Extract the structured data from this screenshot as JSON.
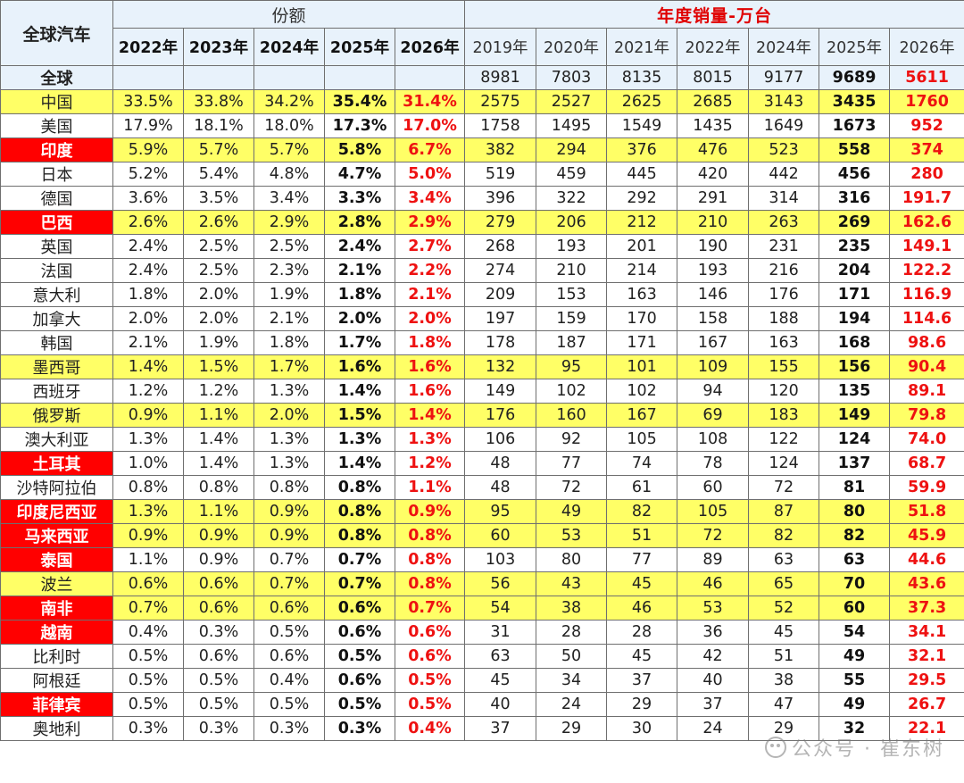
{
  "header": {
    "corner": "全球汽车",
    "share_title": "份额",
    "sales_title": "年度销量-万台",
    "share_years": [
      "2022年",
      "2023年",
      "2024年",
      "2025年",
      "2026年"
    ],
    "sales_years": [
      "2019年",
      "2020年",
      "2021年",
      "2022年",
      "2024年",
      "2025年",
      "2026年"
    ]
  },
  "global": {
    "label": "全球",
    "sales": [
      "8981",
      "7803",
      "8135",
      "8015",
      "9177",
      "9689",
      "5611"
    ]
  },
  "rows": [
    {
      "country": "中国",
      "red": false,
      "hl": true,
      "share": [
        "33.5%",
        "33.8%",
        "34.2%",
        "35.4%",
        "31.4%"
      ],
      "sales": [
        "2575",
        "2527",
        "2625",
        "2685",
        "3143",
        "3435",
        "1760"
      ]
    },
    {
      "country": "美国",
      "red": false,
      "hl": false,
      "share": [
        "17.9%",
        "18.1%",
        "18.0%",
        "17.3%",
        "17.0%"
      ],
      "sales": [
        "1758",
        "1495",
        "1549",
        "1435",
        "1649",
        "1673",
        "952"
      ]
    },
    {
      "country": "印度",
      "red": true,
      "hl": true,
      "share": [
        "5.9%",
        "5.7%",
        "5.7%",
        "5.8%",
        "6.7%"
      ],
      "sales": [
        "382",
        "294",
        "376",
        "476",
        "523",
        "558",
        "374"
      ]
    },
    {
      "country": "日本",
      "red": false,
      "hl": false,
      "share": [
        "5.2%",
        "5.4%",
        "4.8%",
        "4.7%",
        "5.0%"
      ],
      "sales": [
        "519",
        "459",
        "445",
        "420",
        "442",
        "456",
        "280"
      ]
    },
    {
      "country": "德国",
      "red": false,
      "hl": false,
      "share": [
        "3.6%",
        "3.5%",
        "3.4%",
        "3.3%",
        "3.4%"
      ],
      "sales": [
        "396",
        "322",
        "292",
        "291",
        "314",
        "316",
        "191.7"
      ]
    },
    {
      "country": "巴西",
      "red": true,
      "hl": true,
      "share": [
        "2.6%",
        "2.6%",
        "2.9%",
        "2.8%",
        "2.9%"
      ],
      "sales": [
        "279",
        "206",
        "212",
        "210",
        "263",
        "269",
        "162.6"
      ]
    },
    {
      "country": "英国",
      "red": false,
      "hl": false,
      "share": [
        "2.4%",
        "2.5%",
        "2.5%",
        "2.4%",
        "2.7%"
      ],
      "sales": [
        "268",
        "193",
        "201",
        "190",
        "231",
        "235",
        "149.1"
      ]
    },
    {
      "country": "法国",
      "red": false,
      "hl": false,
      "share": [
        "2.4%",
        "2.5%",
        "2.3%",
        "2.1%",
        "2.2%"
      ],
      "sales": [
        "274",
        "210",
        "214",
        "193",
        "216",
        "204",
        "122.2"
      ]
    },
    {
      "country": "意大利",
      "red": false,
      "hl": false,
      "share": [
        "1.8%",
        "2.0%",
        "1.9%",
        "1.8%",
        "2.1%"
      ],
      "sales": [
        "209",
        "153",
        "163",
        "146",
        "176",
        "171",
        "116.9"
      ]
    },
    {
      "country": "加拿大",
      "red": false,
      "hl": false,
      "share": [
        "2.0%",
        "2.0%",
        "2.1%",
        "2.0%",
        "2.0%"
      ],
      "sales": [
        "197",
        "159",
        "170",
        "158",
        "188",
        "194",
        "114.6"
      ]
    },
    {
      "country": "韩国",
      "red": false,
      "hl": false,
      "share": [
        "2.1%",
        "1.9%",
        "1.8%",
        "1.7%",
        "1.8%"
      ],
      "sales": [
        "178",
        "187",
        "171",
        "167",
        "163",
        "168",
        "98.6"
      ]
    },
    {
      "country": "墨西哥",
      "red": false,
      "hl": true,
      "share": [
        "1.4%",
        "1.5%",
        "1.7%",
        "1.6%",
        "1.6%"
      ],
      "sales": [
        "132",
        "95",
        "101",
        "109",
        "155",
        "156",
        "90.4"
      ]
    },
    {
      "country": "西班牙",
      "red": false,
      "hl": false,
      "share": [
        "1.2%",
        "1.2%",
        "1.3%",
        "1.4%",
        "1.6%"
      ],
      "sales": [
        "149",
        "102",
        "102",
        "94",
        "120",
        "135",
        "89.1"
      ]
    },
    {
      "country": "俄罗斯",
      "red": false,
      "hl": true,
      "share": [
        "0.9%",
        "1.1%",
        "2.0%",
        "1.5%",
        "1.4%"
      ],
      "sales": [
        "176",
        "160",
        "167",
        "69",
        "183",
        "149",
        "79.8"
      ]
    },
    {
      "country": "澳大利亚",
      "red": false,
      "hl": false,
      "share": [
        "1.3%",
        "1.4%",
        "1.3%",
        "1.3%",
        "1.3%"
      ],
      "sales": [
        "106",
        "92",
        "105",
        "108",
        "122",
        "124",
        "74.0"
      ]
    },
    {
      "country": "土耳其",
      "red": true,
      "hl": false,
      "share": [
        "1.0%",
        "1.4%",
        "1.3%",
        "1.4%",
        "1.2%"
      ],
      "sales": [
        "48",
        "77",
        "74",
        "78",
        "124",
        "137",
        "68.7"
      ]
    },
    {
      "country": "沙特阿拉伯",
      "red": false,
      "hl": false,
      "share": [
        "0.8%",
        "0.8%",
        "0.8%",
        "0.8%",
        "1.1%"
      ],
      "sales": [
        "48",
        "72",
        "61",
        "60",
        "72",
        "81",
        "59.9"
      ]
    },
    {
      "country": "印度尼西亚",
      "red": true,
      "hl": true,
      "share": [
        "1.3%",
        "1.1%",
        "0.9%",
        "0.8%",
        "0.9%"
      ],
      "sales": [
        "95",
        "49",
        "82",
        "105",
        "87",
        "80",
        "51.8"
      ]
    },
    {
      "country": "马来西亚",
      "red": true,
      "hl": true,
      "share": [
        "0.9%",
        "0.9%",
        "0.9%",
        "0.8%",
        "0.8%"
      ],
      "sales": [
        "60",
        "53",
        "51",
        "72",
        "82",
        "82",
        "45.9"
      ]
    },
    {
      "country": "泰国",
      "red": true,
      "hl": false,
      "share": [
        "1.1%",
        "0.9%",
        "0.7%",
        "0.7%",
        "0.8%"
      ],
      "sales": [
        "103",
        "80",
        "77",
        "89",
        "63",
        "63",
        "44.6"
      ]
    },
    {
      "country": "波兰",
      "red": false,
      "hl": true,
      "share": [
        "0.6%",
        "0.6%",
        "0.7%",
        "0.7%",
        "0.8%"
      ],
      "sales": [
        "56",
        "43",
        "45",
        "46",
        "65",
        "70",
        "43.6"
      ]
    },
    {
      "country": "南非",
      "red": true,
      "hl": true,
      "share": [
        "0.7%",
        "0.6%",
        "0.6%",
        "0.6%",
        "0.7%"
      ],
      "sales": [
        "54",
        "38",
        "46",
        "53",
        "52",
        "60",
        "37.3"
      ]
    },
    {
      "country": "越南",
      "red": true,
      "hl": false,
      "share": [
        "0.4%",
        "0.3%",
        "0.5%",
        "0.6%",
        "0.6%"
      ],
      "sales": [
        "31",
        "28",
        "28",
        "36",
        "45",
        "54",
        "34.1"
      ]
    },
    {
      "country": "比利时",
      "red": false,
      "hl": false,
      "share": [
        "0.5%",
        "0.6%",
        "0.6%",
        "0.5%",
        "0.6%"
      ],
      "sales": [
        "63",
        "50",
        "45",
        "42",
        "51",
        "49",
        "32.1"
      ]
    },
    {
      "country": "阿根廷",
      "red": false,
      "hl": false,
      "share": [
        "0.5%",
        "0.5%",
        "0.4%",
        "0.6%",
        "0.5%"
      ],
      "sales": [
        "45",
        "34",
        "37",
        "40",
        "38",
        "55",
        "29.5"
      ]
    },
    {
      "country": "菲律宾",
      "red": true,
      "hl": false,
      "share": [
        "0.5%",
        "0.5%",
        "0.5%",
        "0.5%",
        "0.5%"
      ],
      "sales": [
        "40",
        "24",
        "29",
        "37",
        "47",
        "49",
        "26.7"
      ]
    },
    {
      "country": "奥地利",
      "red": false,
      "hl": false,
      "share": [
        "0.3%",
        "0.3%",
        "0.3%",
        "0.3%",
        "0.4%"
      ],
      "sales": [
        "37",
        "29",
        "30",
        "24",
        "29",
        "32",
        "22.1"
      ]
    }
  ],
  "watermark": "公众号 · 崔东树"
}
